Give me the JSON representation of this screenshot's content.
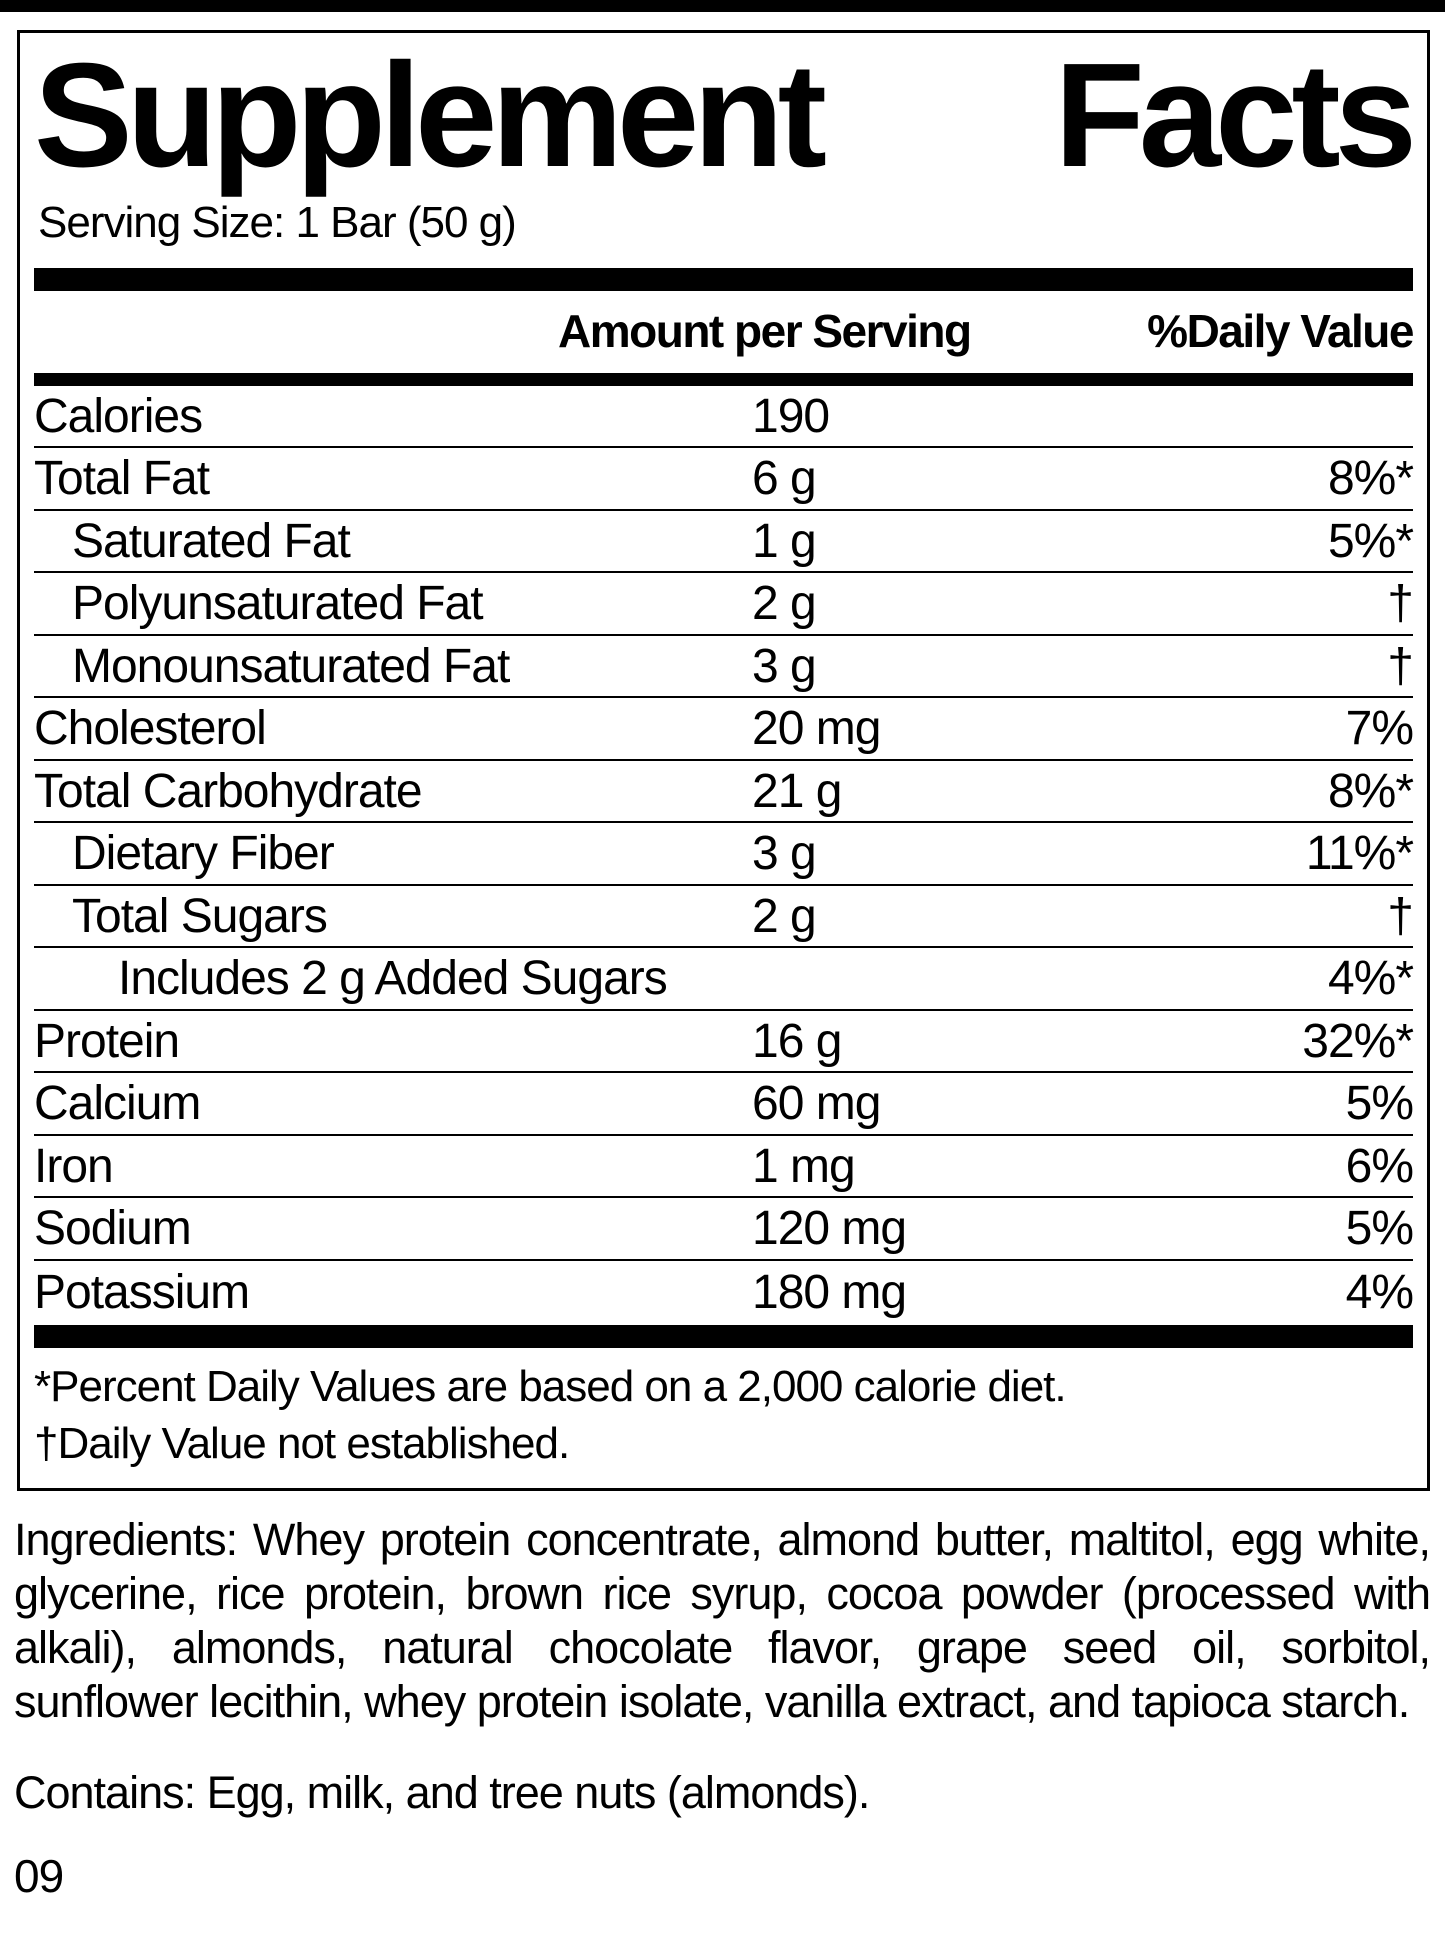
{
  "panel": {
    "title_left": "Supplement",
    "title_right": "Facts",
    "serving_size": "Serving Size: 1 Bar (50 g)",
    "header": {
      "amount": "Amount per Serving",
      "daily_value": "%Daily Value"
    },
    "rows": [
      {
        "name": "Calories",
        "amount": "190",
        "dv": "",
        "indent": 0
      },
      {
        "name": "Total Fat",
        "amount": "6 g",
        "dv": "8%*",
        "indent": 0
      },
      {
        "name": "Saturated Fat",
        "amount": "1 g",
        "dv": "5%*",
        "indent": 1
      },
      {
        "name": "Polyunsaturated Fat",
        "amount": "2 g",
        "dv": "†",
        "indent": 1
      },
      {
        "name": "Monounsaturated Fat",
        "amount": "3 g",
        "dv": "†",
        "indent": 1
      },
      {
        "name": "Cholesterol",
        "amount": "20 mg",
        "dv": "7%",
        "indent": 0
      },
      {
        "name": "Total Carbohydrate",
        "amount": "21 g",
        "dv": "8%*",
        "indent": 0
      },
      {
        "name": "Dietary Fiber",
        "amount": "3 g",
        "dv": "11%*",
        "indent": 1
      },
      {
        "name": "Total Sugars",
        "amount": "2 g",
        "dv": "†",
        "indent": 1
      },
      {
        "name": "Includes 2 g Added Sugars",
        "amount": "",
        "dv": "4%*",
        "indent": 2
      },
      {
        "name": "Protein",
        "amount": "16 g",
        "dv": "32%*",
        "indent": 0
      },
      {
        "name": "Calcium",
        "amount": "60 mg",
        "dv": "5%",
        "indent": 0
      },
      {
        "name": "Iron",
        "amount": "1 mg",
        "dv": "6%",
        "indent": 0
      },
      {
        "name": "Sodium",
        "amount": "120 mg",
        "dv": "5%",
        "indent": 0
      },
      {
        "name": "Potassium",
        "amount": "180 mg",
        "dv": "4%",
        "indent": 0
      }
    ],
    "footnotes": {
      "percent": "*Percent Daily Values are based on a 2,000 calorie diet.",
      "dagger": "†Daily Value not established."
    }
  },
  "ingredients": "Ingredients: Whey protein concentrate, almond butter, maltitol, egg white, glycerine, rice protein, brown rice syrup, cocoa powder (processed with alkali), almonds, natural chocolate flavor, grape seed oil, sorbitol, sunflower lecithin, whey protein isolate, vanilla extract, and tapioca starch.",
  "contains": "Contains: Egg, milk, and tree nuts (almonds).",
  "page_code": "09",
  "colors": {
    "text": "#000000",
    "background": "#ffffff",
    "rule": "#000000"
  }
}
